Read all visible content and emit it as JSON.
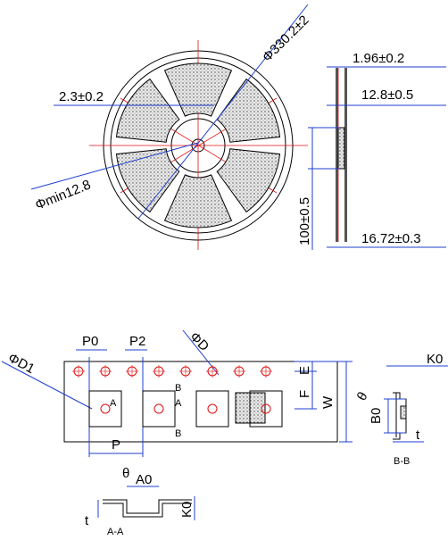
{
  "reel": {
    "outer_diameter": "Φ330.2±2",
    "slot_width": "2.3±0.2",
    "hub_hole": "Φmin12.8"
  },
  "reel_side": {
    "flange_thickness": "1.96±0.2",
    "inner_width": "12.8±0.5",
    "hub_diameter": "100±0.5",
    "outer_width": "16.72±0.3"
  },
  "tape": {
    "p0": "P0",
    "p2": "P2",
    "d": "ΦD",
    "d1": "ΦD1",
    "e": "E",
    "f": "F",
    "w": "W",
    "section_a_left": "A",
    "section_a_right": "A",
    "section_b_top": "B",
    "section_b_bottom": "B",
    "p": "P"
  },
  "section_b": {
    "k0": "K0",
    "theta": "θ",
    "b0": "B0",
    "t": "t",
    "caption": "B-B"
  },
  "section_a": {
    "theta": "θ",
    "a0": "A0",
    "k0": "K0",
    "t": "t",
    "caption": "A-A"
  }
}
